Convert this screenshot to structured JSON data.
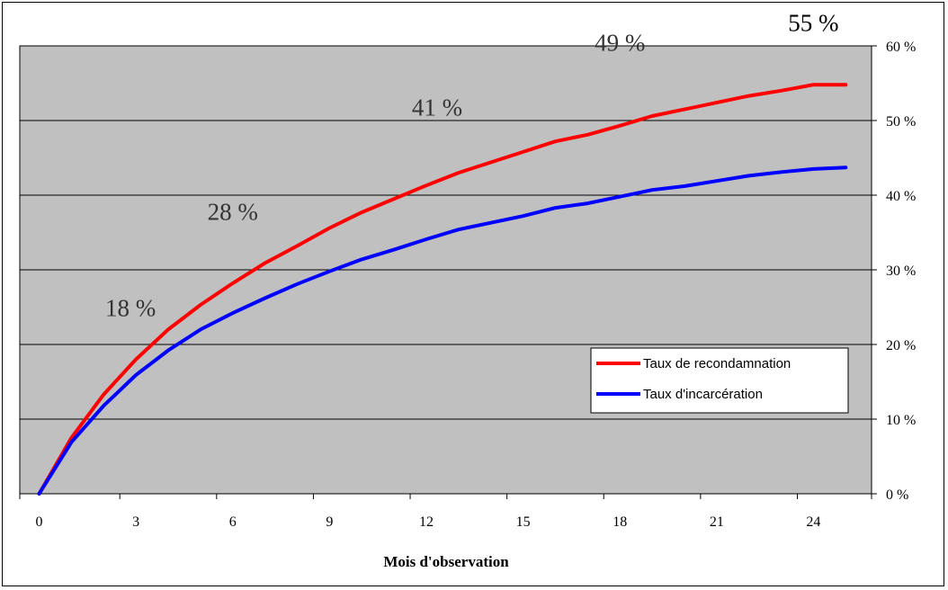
{
  "chart_data": {
    "type": "line",
    "title": "",
    "xlabel": "Mois d'observation",
    "ylabel": "",
    "xlim": [
      -0.6,
      25.8
    ],
    "ylim": [
      0,
      60
    ],
    "x_ticks": [
      "0",
      "3",
      "6",
      "9",
      "12",
      "15",
      "18",
      "21",
      "24"
    ],
    "x_tick_values": [
      0,
      3,
      6,
      9,
      12,
      15,
      18,
      21,
      24
    ],
    "y_ticks": [
      "0 %",
      "10 %",
      "20 %",
      "30 %",
      "40 %",
      "50 %",
      "60 %"
    ],
    "y_tick_values": [
      0,
      10,
      20,
      30,
      40,
      50,
      60
    ],
    "y_axis_side": "right",
    "grid": "horizontal",
    "plot_background": "#c0c0c0",
    "legend_position": "lower-right",
    "series": [
      {
        "name": "Taux de recondamnation",
        "color": "#ff0000",
        "x": [
          0,
          1,
          2,
          3,
          4,
          5,
          6,
          7,
          8,
          9,
          10,
          11,
          12,
          13,
          14,
          15,
          16,
          17,
          18,
          19,
          20,
          21,
          22,
          23,
          24,
          25
        ],
        "y": [
          0,
          7.5,
          13.3,
          18,
          22,
          25.3,
          28.2,
          30.9,
          33.2,
          35.6,
          37.7,
          39.5,
          41.3,
          43,
          44.4,
          45.8,
          47.2,
          48.1,
          49.3,
          50.6,
          51.5,
          52.4,
          53.3,
          54,
          54.8,
          54.8
        ]
      },
      {
        "name": "Taux d'incarcération",
        "color": "#0000ff",
        "x": [
          0,
          1,
          2,
          3,
          4,
          5,
          6,
          7,
          8,
          9,
          10,
          11,
          12,
          13,
          14,
          15,
          16,
          17,
          18,
          19,
          20,
          21,
          22,
          23,
          24,
          25
        ],
        "y": [
          0,
          6.9,
          11.8,
          15.9,
          19.2,
          22,
          24.2,
          26.2,
          28.1,
          29.8,
          31.4,
          32.7,
          34.1,
          35.4,
          36.3,
          37.2,
          38.3,
          38.9,
          39.8,
          40.7,
          41.2,
          41.9,
          42.6,
          43.1,
          43.5,
          43.7
        ]
      }
    ],
    "annotations": [
      {
        "text": "18 %",
        "x": 3,
        "y": 18
      },
      {
        "text": "28 %",
        "x": 6,
        "y": 28
      },
      {
        "text": "41 %",
        "x": 12,
        "y": 41
      },
      {
        "text": "49 %",
        "x": 18,
        "y": 49
      },
      {
        "text": "55 %",
        "x": 24,
        "y": 55
      }
    ]
  }
}
